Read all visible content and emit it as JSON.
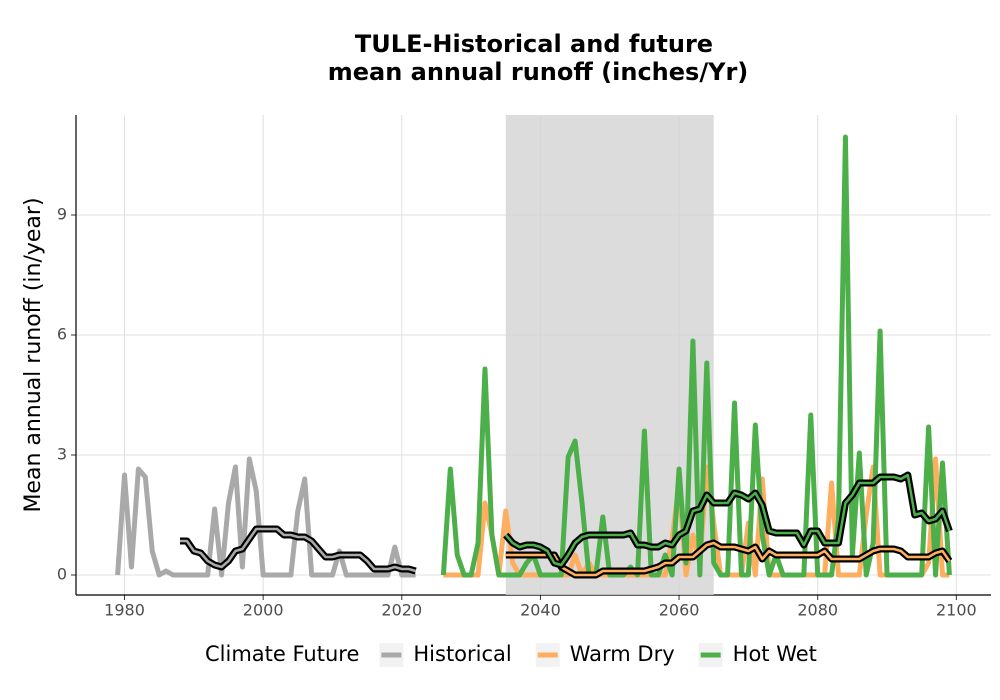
{
  "chart_data": {
    "type": "line",
    "title": [
      "TULE-Historical and future",
      "mean annual runoff (inches/Yr)"
    ],
    "y_label": "Mean annual runoff (in/year)",
    "legend_title": "Climate Future",
    "legend_position": "bottom",
    "grid": true,
    "shade": [
      2035,
      2065
    ],
    "xlim": [
      1973,
      2105
    ],
    "xticks": [
      1980,
      2000,
      2020,
      2040,
      2060,
      2080,
      2100
    ],
    "ylim": [
      -0.5,
      11.5
    ],
    "yticks": [
      0,
      3,
      6,
      9
    ],
    "series": [
      {
        "name": "Historical",
        "color": "#a9a9a9",
        "x": [
          1979,
          1980,
          1981,
          1982,
          1983,
          1984,
          1985,
          1986,
          1987,
          1988,
          1989,
          1990,
          1991,
          1992,
          1993,
          1994,
          1995,
          1996,
          1997,
          1998,
          1999,
          2000,
          2001,
          2002,
          2003,
          2004,
          2005,
          2006,
          2007,
          2008,
          2009,
          2010,
          2011,
          2012,
          2013,
          2014,
          2015,
          2016,
          2017,
          2018,
          2019,
          2020,
          2021,
          2022
        ],
        "values": [
          0,
          2.5,
          0.2,
          2.65,
          2.45,
          0.6,
          0,
          0.1,
          0,
          0,
          0,
          0,
          0,
          0,
          1.65,
          0,
          1.8,
          2.7,
          0.2,
          2.9,
          2.1,
          0,
          0,
          0,
          0,
          0,
          1.6,
          2.4,
          0,
          0,
          0,
          0,
          0.6,
          0,
          0,
          0,
          0,
          0,
          0,
          0,
          0.7,
          0,
          0,
          0
        ],
        "trend": [
          null,
          null,
          null,
          null,
          null,
          null,
          null,
          null,
          null,
          0.85,
          0.85,
          0.6,
          0.55,
          0.35,
          0.25,
          0.2,
          0.35,
          0.6,
          0.65,
          0.9,
          1.15,
          1.15,
          1.15,
          1.15,
          1.0,
          1.0,
          0.95,
          0.95,
          0.85,
          0.65,
          0.45,
          0.45,
          0.5,
          0.5,
          0.5,
          0.5,
          0.35,
          0.15,
          0.15,
          0.15,
          0.2,
          0.15,
          0.15,
          0.1
        ]
      },
      {
        "name": "Warm Dry",
        "color": "#fdae61",
        "x": [
          2026,
          2027,
          2028,
          2029,
          2030,
          2031,
          2032,
          2033,
          2034,
          2035,
          2036,
          2037,
          2038,
          2039,
          2040,
          2041,
          2042,
          2043,
          2044,
          2045,
          2046,
          2047,
          2048,
          2049,
          2050,
          2051,
          2052,
          2053,
          2054,
          2055,
          2056,
          2057,
          2058,
          2059,
          2060,
          2061,
          2062,
          2063,
          2064,
          2065,
          2066,
          2067,
          2068,
          2069,
          2070,
          2071,
          2072,
          2073,
          2074,
          2075,
          2076,
          2077,
          2078,
          2079,
          2080,
          2081,
          2082,
          2083,
          2084,
          2085,
          2086,
          2087,
          2088,
          2089,
          2090,
          2091,
          2092,
          2093,
          2094,
          2095,
          2096,
          2097,
          2098,
          2099
        ],
        "values": [
          0,
          0,
          0,
          0,
          0,
          0,
          1.8,
          1.0,
          0,
          1.6,
          0.3,
          0,
          0,
          0,
          0,
          0,
          0,
          0,
          0,
          0.5,
          0,
          0.3,
          0,
          0,
          0,
          0,
          0,
          0,
          0,
          0,
          0,
          0,
          0,
          0.9,
          2.3,
          0,
          1.0,
          0.3,
          2.7,
          1.3,
          0,
          0,
          0,
          0,
          1.3,
          0,
          2.4,
          0,
          0,
          0,
          0,
          0,
          0,
          0,
          0,
          0,
          2.3,
          0,
          0,
          0,
          0,
          1.5,
          2.7,
          0,
          0,
          0,
          0,
          0,
          0,
          0,
          0.3,
          2.9,
          0,
          0
        ],
        "trend": [
          null,
          null,
          null,
          null,
          null,
          null,
          null,
          null,
          null,
          0.5,
          0.5,
          0.5,
          0.5,
          0.5,
          0.5,
          0.5,
          0.5,
          0.2,
          0.1,
          0,
          0,
          0,
          0,
          0.1,
          0.1,
          0.1,
          0.1,
          0.1,
          0.1,
          0.1,
          0.15,
          0.2,
          0.3,
          0.3,
          0.45,
          0.45,
          0.45,
          0.6,
          0.75,
          0.8,
          0.7,
          0.7,
          0.7,
          0.65,
          0.6,
          0.7,
          0.4,
          0.6,
          0.5,
          0.5,
          0.5,
          0.5,
          0.5,
          0.5,
          0.5,
          0.6,
          0.4,
          0.4,
          0.4,
          0.4,
          0.4,
          0.5,
          0.6,
          0.65,
          0.65,
          0.65,
          0.6,
          0.45,
          0.45,
          0.45,
          0.45,
          0.55,
          0.6,
          0.35
        ]
      },
      {
        "name": "Hot Wet",
        "color": "#4daf4a",
        "x": [
          2026,
          2027,
          2028,
          2029,
          2030,
          2031,
          2032,
          2033,
          2034,
          2035,
          2036,
          2037,
          2038,
          2039,
          2040,
          2041,
          2042,
          2043,
          2044,
          2045,
          2046,
          2047,
          2048,
          2049,
          2050,
          2051,
          2052,
          2053,
          2054,
          2055,
          2056,
          2057,
          2058,
          2059,
          2060,
          2061,
          2062,
          2063,
          2064,
          2065,
          2066,
          2067,
          2068,
          2069,
          2070,
          2071,
          2072,
          2073,
          2074,
          2075,
          2076,
          2077,
          2078,
          2079,
          2080,
          2081,
          2082,
          2083,
          2084,
          2085,
          2086,
          2087,
          2088,
          2089,
          2090,
          2091,
          2092,
          2093,
          2094,
          2095,
          2096,
          2097,
          2098,
          2099
        ],
        "values": [
          0,
          2.65,
          0.5,
          0,
          0,
          0.8,
          5.15,
          1.0,
          0,
          0,
          0,
          0,
          0.3,
          0.5,
          0,
          0,
          0,
          0,
          2.95,
          3.35,
          1.8,
          0,
          0,
          1.45,
          0,
          0,
          0,
          0.2,
          0,
          3.6,
          0,
          0,
          0.5,
          0,
          2.65,
          0.3,
          5.85,
          0,
          5.3,
          0.3,
          0,
          0,
          4.3,
          0,
          0,
          3.75,
          1.0,
          0,
          0.5,
          0,
          0,
          0,
          0,
          4.0,
          0,
          0,
          0,
          1.4,
          10.95,
          0.5,
          3.05,
          0,
          0.8,
          6.1,
          0,
          0,
          0,
          0,
          0,
          0,
          3.7,
          0,
          2.8,
          0
        ],
        "trend": [
          null,
          null,
          null,
          null,
          null,
          null,
          null,
          null,
          null,
          1.0,
          0.8,
          0.7,
          0.75,
          0.75,
          0.7,
          0.6,
          0.3,
          0.25,
          0.5,
          0.8,
          0.95,
          1.0,
          1.0,
          1.0,
          1.0,
          1.0,
          1.0,
          1.05,
          0.75,
          0.75,
          0.7,
          0.7,
          0.8,
          0.75,
          1.0,
          1.1,
          1.6,
          1.65,
          2.0,
          1.8,
          1.8,
          1.8,
          2.05,
          2.0,
          1.9,
          2.05,
          1.75,
          1.1,
          1.05,
          1.05,
          1.05,
          1.05,
          0.75,
          1.1,
          1.1,
          0.8,
          0.8,
          0.8,
          1.8,
          2.0,
          2.3,
          2.3,
          2.3,
          2.45,
          2.45,
          2.45,
          2.4,
          2.5,
          1.5,
          1.55,
          1.35,
          1.4,
          1.6,
          1.1
        ]
      }
    ]
  }
}
